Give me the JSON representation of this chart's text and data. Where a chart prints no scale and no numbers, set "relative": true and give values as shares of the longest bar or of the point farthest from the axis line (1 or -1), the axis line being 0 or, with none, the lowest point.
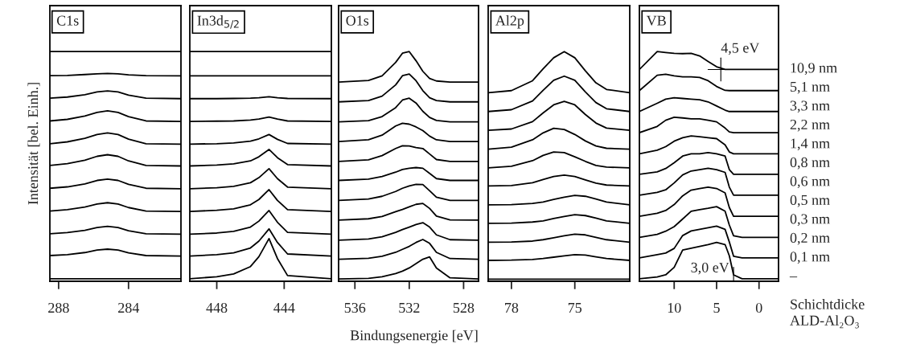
{
  "chart_data": [
    {
      "type": "line",
      "relative": true,
      "title": "C1s",
      "ylabel": "Intensität [bel. Einh.]",
      "xlim": [
        288.5,
        281
      ],
      "xticks": [
        288,
        284
      ],
      "tick_labels": "x",
      "grid": false,
      "legend": false,
      "x": [
        288.5,
        287.5,
        286.5,
        285.8,
        285.2,
        284.6,
        284,
        283,
        281
      ],
      "series": [
        {
          "color": "#000000",
          "values": [
            0.011,
            0.011,
            0.011,
            0.011,
            0.011,
            0.011,
            0.011,
            0.011,
            0.011
          ]
        },
        {
          "color": "#000000",
          "values": [
            0.112,
            0.116,
            0.125,
            0.136,
            0.14,
            0.136,
            0.124,
            0.112,
            0.11
          ]
        },
        {
          "color": "#000000",
          "values": [
            0.207,
            0.212,
            0.222,
            0.234,
            0.239,
            0.234,
            0.22,
            0.207,
            0.205
          ]
        },
        {
          "color": "#000000",
          "values": [
            0.306,
            0.312,
            0.323,
            0.336,
            0.342,
            0.336,
            0.321,
            0.306,
            0.304
          ]
        },
        {
          "color": "#000000",
          "values": [
            0.405,
            0.411,
            0.424,
            0.439,
            0.445,
            0.439,
            0.422,
            0.405,
            0.403
          ]
        },
        {
          "color": "#000000",
          "values": [
            0.504,
            0.512,
            0.527,
            0.544,
            0.551,
            0.544,
            0.524,
            0.504,
            0.502
          ]
        },
        {
          "color": "#000000",
          "values": [
            0.599,
            0.607,
            0.622,
            0.639,
            0.646,
            0.639,
            0.619,
            0.599,
            0.597
          ]
        },
        {
          "color": "#000000",
          "values": [
            0.698,
            0.705,
            0.719,
            0.735,
            0.742,
            0.735,
            0.717,
            0.698,
            0.696
          ]
        },
        {
          "color": "#000000",
          "values": [
            0.797,
            0.802,
            0.812,
            0.824,
            0.829,
            0.824,
            0.81,
            0.797,
            0.795
          ]
        },
        {
          "color": "#000000",
          "values": [
            0.895,
            0.896,
            0.9,
            0.903,
            0.905,
            0.903,
            0.899,
            0.895,
            0.894
          ]
        },
        {
          "color": "#000000",
          "values": [
            1.0,
            1.0,
            1.0,
            1.0,
            1.0,
            1.0,
            1.0,
            1.0,
            1.0
          ]
        }
      ]
    },
    {
      "type": "line",
      "relative": true,
      "title": "In3d$_{5/2}$",
      "xlim": [
        449.6,
        441.2
      ],
      "xticks": [
        448,
        444
      ],
      "tick_labels": "x",
      "grid": false,
      "legend": false,
      "x": [
        449.6,
        448,
        447,
        446,
        445.5,
        444.9,
        444.4,
        443.8,
        441.2
      ],
      "series": [
        {
          "color": "#000000",
          "values": [
            0.011,
            0.02,
            0.032,
            0.064,
            0.107,
            0.186,
            0.099,
            0.025,
            0.011
          ]
        },
        {
          "color": "#000000",
          "values": [
            0.11,
            0.116,
            0.124,
            0.145,
            0.175,
            0.228,
            0.169,
            0.119,
            0.11
          ]
        },
        {
          "color": "#000000",
          "values": [
            0.205,
            0.21,
            0.217,
            0.236,
            0.262,
            0.308,
            0.257,
            0.213,
            0.205
          ]
        },
        {
          "color": "#000000",
          "values": [
            0.304,
            0.309,
            0.315,
            0.333,
            0.356,
            0.399,
            0.352,
            0.312,
            0.304
          ]
        },
        {
          "color": "#000000",
          "values": [
            0.403,
            0.407,
            0.413,
            0.429,
            0.451,
            0.49,
            0.447,
            0.41,
            0.403
          ]
        },
        {
          "color": "#000000",
          "values": [
            0.502,
            0.506,
            0.511,
            0.524,
            0.542,
            0.574,
            0.538,
            0.508,
            0.502
          ]
        },
        {
          "color": "#000000",
          "values": [
            0.597,
            0.599,
            0.602,
            0.61,
            0.62,
            0.639,
            0.618,
            0.6,
            0.597
          ]
        },
        {
          "color": "#000000",
          "values": [
            0.696,
            0.697,
            0.698,
            0.702,
            0.706,
            0.715,
            0.706,
            0.698,
            0.696
          ]
        },
        {
          "color": "#000000",
          "values": [
            0.795,
            0.795,
            0.796,
            0.797,
            0.799,
            0.803,
            0.799,
            0.796,
            0.795
          ]
        },
        {
          "color": "#000000",
          "values": [
            0.894,
            0.894,
            0.894,
            0.894,
            0.894,
            0.894,
            0.894,
            0.894,
            0.894
          ]
        },
        {
          "color": "#000000",
          "values": [
            1.0,
            1.0,
            1.0,
            1.0,
            1.0,
            1.0,
            1.0,
            1.0,
            1.0
          ]
        }
      ]
    },
    {
      "type": "line",
      "relative": true,
      "title": "O1s",
      "xlabel": "Bindungsenergie [eV]",
      "xlim": [
        537.2,
        526.9
      ],
      "xticks": [
        536,
        532,
        528
      ],
      "tick_labels": "x",
      "grid": false,
      "legend": false,
      "x": [
        537.2,
        535,
        534,
        533,
        532.5,
        532,
        531.5,
        531,
        530.5,
        530,
        529,
        526.9
      ],
      "series": [
        {
          "color": "#000000",
          "values": [
            0.01,
            0.013,
            0.02,
            0.034,
            0.044,
            0.058,
            0.077,
            0.096,
            0.106,
            0.058,
            0.015,
            0.01
          ]
        },
        {
          "color": "#000000",
          "values": [
            0.096,
            0.1,
            0.109,
            0.126,
            0.139,
            0.152,
            0.169,
            0.182,
            0.165,
            0.126,
            0.099,
            0.096
          ]
        },
        {
          "color": "#000000",
          "values": [
            0.179,
            0.184,
            0.194,
            0.213,
            0.225,
            0.236,
            0.247,
            0.255,
            0.236,
            0.202,
            0.181,
            0.179
          ]
        },
        {
          "color": "#000000",
          "values": [
            0.266,
            0.272,
            0.282,
            0.303,
            0.313,
            0.324,
            0.335,
            0.339,
            0.317,
            0.284,
            0.267,
            0.266
          ]
        },
        {
          "color": "#000000",
          "values": [
            0.352,
            0.358,
            0.37,
            0.391,
            0.405,
            0.415,
            0.422,
            0.421,
            0.394,
            0.366,
            0.352,
            0.352
          ]
        },
        {
          "color": "#000000",
          "values": [
            0.439,
            0.445,
            0.456,
            0.475,
            0.487,
            0.492,
            0.495,
            0.492,
            0.47,
            0.447,
            0.439,
            0.439
          ]
        },
        {
          "color": "#000000",
          "values": [
            0.522,
            0.529,
            0.547,
            0.578,
            0.59,
            0.589,
            0.582,
            0.578,
            0.554,
            0.53,
            0.522,
            0.522
          ]
        },
        {
          "color": "#000000",
          "values": [
            0.608,
            0.616,
            0.636,
            0.676,
            0.688,
            0.684,
            0.672,
            0.656,
            0.632,
            0.616,
            0.608,
            0.608
          ]
        },
        {
          "color": "#000000",
          "values": [
            0.694,
            0.699,
            0.717,
            0.756,
            0.789,
            0.797,
            0.776,
            0.74,
            0.713,
            0.7,
            0.694,
            0.694
          ]
        },
        {
          "color": "#000000",
          "values": [
            0.781,
            0.787,
            0.806,
            0.855,
            0.895,
            0.902,
            0.873,
            0.83,
            0.799,
            0.787,
            0.781,
            0.781
          ]
        },
        {
          "color": "#000000",
          "values": [
            0.867,
            0.874,
            0.894,
            0.953,
            0.993,
            1.0,
            0.96,
            0.914,
            0.883,
            0.872,
            0.867,
            0.867
          ]
        }
      ]
    },
    {
      "type": "line",
      "relative": true,
      "title": "Al2p",
      "xlim": [
        79.1,
        72.4
      ],
      "xticks": [
        78,
        75
      ],
      "tick_labels": "x",
      "grid": false,
      "legend": false,
      "x": [
        79.1,
        78,
        77,
        76.5,
        76,
        75.5,
        75,
        74.5,
        74,
        73.5,
        72.4
      ],
      "series": [
        {
          "color": "#000000",
          "values": [
            0.009,
            0.009,
            0.009,
            0.009,
            0.009,
            0.009,
            0.009,
            0.009,
            0.009,
            0.009,
            0.009
          ]
        },
        {
          "color": "#000000",
          "values": [
            0.091,
            0.092,
            0.095,
            0.099,
            0.105,
            0.111,
            0.116,
            0.114,
            0.106,
            0.099,
            0.091
          ]
        },
        {
          "color": "#000000",
          "values": [
            0.17,
            0.171,
            0.175,
            0.181,
            0.189,
            0.198,
            0.205,
            0.202,
            0.191,
            0.181,
            0.17
          ]
        },
        {
          "color": "#000000",
          "values": [
            0.252,
            0.253,
            0.258,
            0.263,
            0.273,
            0.282,
            0.29,
            0.286,
            0.275,
            0.263,
            0.252
          ]
        },
        {
          "color": "#000000",
          "values": [
            0.333,
            0.334,
            0.339,
            0.345,
            0.356,
            0.366,
            0.374,
            0.37,
            0.358,
            0.345,
            0.333
          ]
        },
        {
          "color": "#000000",
          "values": [
            0.415,
            0.417,
            0.429,
            0.443,
            0.456,
            0.462,
            0.456,
            0.441,
            0.427,
            0.419,
            0.415
          ]
        },
        {
          "color": "#000000",
          "values": [
            0.494,
            0.501,
            0.525,
            0.548,
            0.563,
            0.56,
            0.542,
            0.522,
            0.504,
            0.497,
            0.494
          ]
        },
        {
          "color": "#000000",
          "values": [
            0.575,
            0.584,
            0.616,
            0.646,
            0.666,
            0.661,
            0.639,
            0.611,
            0.589,
            0.579,
            0.575
          ]
        },
        {
          "color": "#000000",
          "values": [
            0.657,
            0.663,
            0.695,
            0.733,
            0.768,
            0.783,
            0.768,
            0.726,
            0.689,
            0.667,
            0.657
          ]
        },
        {
          "color": "#000000",
          "values": [
            0.739,
            0.747,
            0.785,
            0.831,
            0.875,
            0.893,
            0.875,
            0.824,
            0.778,
            0.751,
            0.739
          ]
        },
        {
          "color": "#000000",
          "values": [
            0.821,
            0.83,
            0.873,
            0.925,
            0.973,
            1.0,
            0.973,
            0.916,
            0.864,
            0.835,
            0.821
          ]
        }
      ]
    },
    {
      "type": "line",
      "relative": true,
      "title": "VB",
      "xlim": [
        14.1,
        -2.3
      ],
      "xticks": [
        10,
        5,
        0
      ],
      "tick_labels": "x",
      "grid": false,
      "legend": false,
      "x": [
        14.1,
        12,
        11,
        10,
        9,
        8,
        7,
        6,
        5,
        4,
        3.5,
        3,
        2,
        -2.3
      ],
      "series": [
        {
          "color": "#000000",
          "values": [
            0.011,
            0.019,
            0.028,
            0.061,
            0.136,
            0.144,
            0.152,
            0.16,
            0.169,
            0.16,
            0.111,
            0.028,
            0.011,
            0.011
          ]
        },
        {
          "color": "#000000",
          "values": [
            0.102,
            0.116,
            0.123,
            0.143,
            0.199,
            0.219,
            0.226,
            0.233,
            0.24,
            0.226,
            0.171,
            0.109,
            0.102,
            0.102
          ]
        },
        {
          "color": "#000000",
          "values": [
            0.191,
            0.204,
            0.218,
            0.238,
            0.271,
            0.305,
            0.312,
            0.318,
            0.325,
            0.305,
            0.245,
            0.198,
            0.191,
            0.191
          ]
        },
        {
          "color": "#000000",
          "values": [
            0.283,
            0.296,
            0.308,
            0.334,
            0.372,
            0.397,
            0.404,
            0.41,
            0.404,
            0.385,
            0.321,
            0.283,
            0.283,
            0.283
          ]
        },
        {
          "color": "#000000",
          "values": [
            0.375,
            0.387,
            0.398,
            0.428,
            0.463,
            0.48,
            0.486,
            0.492,
            0.486,
            0.474,
            0.41,
            0.375,
            0.375,
            0.375
          ]
        },
        {
          "color": "#000000",
          "values": [
            0.466,
            0.476,
            0.491,
            0.516,
            0.545,
            0.555,
            0.555,
            0.56,
            0.555,
            0.545,
            0.486,
            0.466,
            0.466,
            0.466
          ]
        },
        {
          "color": "#000000",
          "values": [
            0.555,
            0.571,
            0.586,
            0.61,
            0.625,
            0.633,
            0.629,
            0.625,
            0.621,
            0.594,
            0.563,
            0.555,
            0.555,
            0.555
          ]
        },
        {
          "color": "#000000",
          "values": [
            0.647,
            0.674,
            0.701,
            0.714,
            0.711,
            0.707,
            0.707,
            0.701,
            0.694,
            0.667,
            0.65,
            0.647,
            0.647,
            0.647
          ]
        },
        {
          "color": "#000000",
          "values": [
            0.739,
            0.775,
            0.793,
            0.799,
            0.796,
            0.793,
            0.79,
            0.781,
            0.763,
            0.745,
            0.739,
            0.739,
            0.739,
            0.739
          ]
        },
        {
          "color": "#000000",
          "values": [
            0.83,
            0.897,
            0.901,
            0.894,
            0.89,
            0.89,
            0.887,
            0.873,
            0.848,
            0.831,
            0.83,
            0.83,
            0.83,
            0.83
          ]
        },
        {
          "color": "#000000",
          "values": [
            0.922,
            1.0,
            0.996,
            0.992,
            0.991,
            0.992,
            0.981,
            0.957,
            0.934,
            0.922,
            0.922,
            0.922,
            0.922,
            0.922
          ]
        }
      ],
      "annotations": [
        {
          "text": "4,5 eV",
          "x": 4.5,
          "y": 0.922
        },
        {
          "text": "3,0 eV",
          "x": 3.0,
          "y": 0.011
        },
        "10,9 nm",
        "5,1 nm",
        "3,3 nm",
        "2,2 nm",
        "1,4 nm",
        "0,8 nm",
        "0,6 nm",
        "0,5 nm",
        "0,3 nm",
        "0,2 nm",
        "0,1 nm",
        "–",
        "Schichtdicke\nALD-Al₂O₃"
      ]
    }
  ]
}
